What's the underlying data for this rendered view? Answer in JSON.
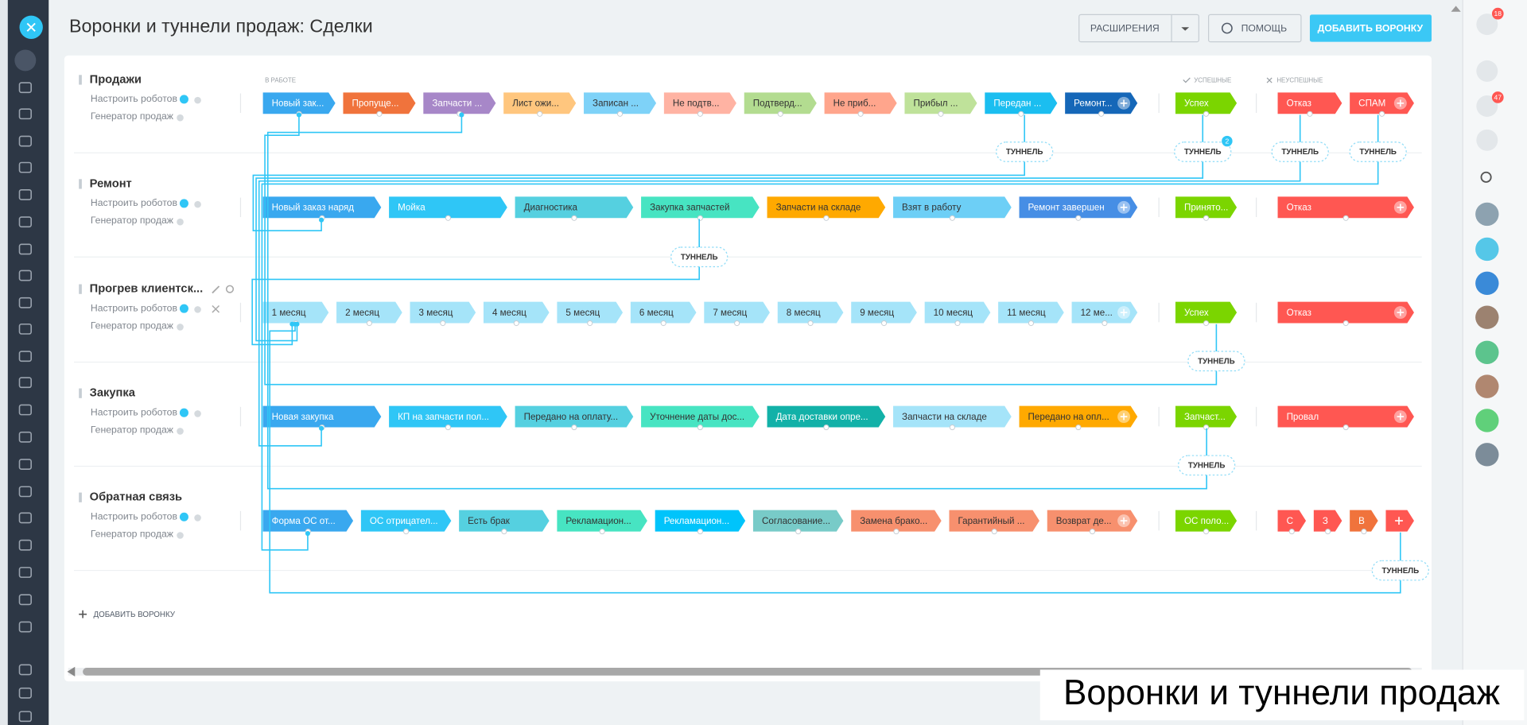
{
  "header": {
    "title": "Воронки и туннели продаж: Сделки",
    "extensions": "РАСШИРЕНИЯ",
    "help": "ПОМОЩЬ",
    "add_funnel": "ДОБАВИТЬ ВОРОНКУ"
  },
  "columns": {
    "in_work": "В РАБОТЕ",
    "success": "УСПЕШНЫЕ",
    "fail": "НЕУСПЕШНЫЕ"
  },
  "robots_link": "Настроить роботов",
  "generator_link": "Генератор продаж",
  "tunnel_label": "ТУННЕЛЬ",
  "tunnel_badge": "2",
  "add_funnel_link": "ДОБАВИТЬ ВОРОНКУ",
  "notifications": {
    "help_badge": "18",
    "bell_badge": "47"
  },
  "caption": "Воронки и туннели продаж",
  "funnels": [
    {
      "name": "Продажи",
      "in_work": [
        {
          "label": "Новый зак...",
          "color": "#39a8ef"
        },
        {
          "label": "Пропуще...",
          "color": "#f0733c"
        },
        {
          "label": "Запчасти ...",
          "color": "#a787c8"
        },
        {
          "label": "Лист ожи...",
          "color": "#ffc67e"
        },
        {
          "label": "Записан ...",
          "color": "#7ed2f8"
        },
        {
          "label": "Не подтв...",
          "color": "#ffb3a3"
        },
        {
          "label": "Подтверд...",
          "color": "#b3dc90"
        },
        {
          "label": "Не приб...",
          "color": "#ffa58c"
        },
        {
          "label": "Прибыл ...",
          "color": "#bfe29a"
        },
        {
          "label": "Передан ...",
          "color": "#1bbef0"
        },
        {
          "label": "Ремонт...",
          "color": "#1567b8"
        }
      ],
      "success": [
        {
          "label": "Успех",
          "color": "#7bd500"
        }
      ],
      "fail": [
        {
          "label": "Отказ",
          "color": "#ff5752"
        },
        {
          "label": "СПАМ",
          "color": "#ff5752"
        }
      ]
    },
    {
      "name": "Ремонт",
      "in_work": [
        {
          "label": "Новый заказ наряд",
          "color": "#39a8ef"
        },
        {
          "label": "Мойка",
          "color": "#2fc6f6"
        },
        {
          "label": "Диагностика",
          "color": "#55d0e0"
        },
        {
          "label": "Закупка запчастей",
          "color": "#47e4c2"
        },
        {
          "label": "Запчасти на складе",
          "color": "#ffa900"
        },
        {
          "label": "Взят в работу",
          "color": "#6dcff6"
        },
        {
          "label": "Ремонт завершен",
          "color": "#468ee5"
        }
      ],
      "success": [
        {
          "label": "Принято...",
          "color": "#7bd500"
        }
      ],
      "fail": [
        {
          "label": "Отказ",
          "color": "#ff5752"
        }
      ]
    },
    {
      "name": "Прогрев клиентск...",
      "in_work": [
        {
          "label": "1 месяц",
          "color": "#a5e4f9"
        },
        {
          "label": "2 месяц",
          "color": "#a5e4f9"
        },
        {
          "label": "3 месяц",
          "color": "#a5e4f9"
        },
        {
          "label": "4 месяц",
          "color": "#a5e4f9"
        },
        {
          "label": "5 месяц",
          "color": "#a5e4f9"
        },
        {
          "label": "6 месяц",
          "color": "#a5e4f9"
        },
        {
          "label": "7 месяц",
          "color": "#a5e4f9"
        },
        {
          "label": "8 месяц",
          "color": "#a5e4f9"
        },
        {
          "label": "9 месяц",
          "color": "#a5e4f9"
        },
        {
          "label": "10 месяц",
          "color": "#a5e4f9"
        },
        {
          "label": "11 месяц",
          "color": "#a5e4f9"
        },
        {
          "label": "12 ме...",
          "color": "#a5e4f9"
        }
      ],
      "success": [
        {
          "label": "Успех",
          "color": "#7bd500"
        }
      ],
      "fail": [
        {
          "label": "Отказ",
          "color": "#ff5752"
        }
      ]
    },
    {
      "name": "Закупка",
      "in_work": [
        {
          "label": "Новая закупка",
          "color": "#39a8ef"
        },
        {
          "label": "КП на запчасти пол...",
          "color": "#2fc6f6"
        },
        {
          "label": "Передано на оплату...",
          "color": "#55d0e0"
        },
        {
          "label": "Уточнение даты дос...",
          "color": "#47e4c2"
        },
        {
          "label": "Дата доставки опре...",
          "color": "#12b1a8"
        },
        {
          "label": "Запчасти на складе",
          "color": "#a5e4f9"
        },
        {
          "label": "Передано на опл...",
          "color": "#ffa900"
        }
      ],
      "success": [
        {
          "label": "Запчаст...",
          "color": "#7bd500"
        }
      ],
      "fail": [
        {
          "label": "Провал",
          "color": "#ff5752"
        }
      ]
    },
    {
      "name": "Обратная связь",
      "in_work": [
        {
          "label": "Форма ОС от...",
          "color": "#39a8ef"
        },
        {
          "label": "ОС отрицател...",
          "color": "#2fc6f6"
        },
        {
          "label": "Есть брак",
          "color": "#55d0e0"
        },
        {
          "label": "Рекламацион...",
          "color": "#47e4c2"
        },
        {
          "label": "Рекламацион...",
          "color": "#00c4fb"
        },
        {
          "label": "Согласование...",
          "color": "#78cbc8"
        },
        {
          "label": "Замена брако...",
          "color": "#f7906e"
        },
        {
          "label": "Гарантийный ...",
          "color": "#f7906e"
        },
        {
          "label": "Возврат де...",
          "color": "#f7906e"
        }
      ],
      "success": [
        {
          "label": "ОС поло...",
          "color": "#7bd500"
        }
      ],
      "fail": [
        {
          "label": "С",
          "color": "#ff5752"
        },
        {
          "label": "З",
          "color": "#ff5752"
        },
        {
          "label": "В",
          "color": "#f0733c"
        }
      ]
    }
  ]
}
